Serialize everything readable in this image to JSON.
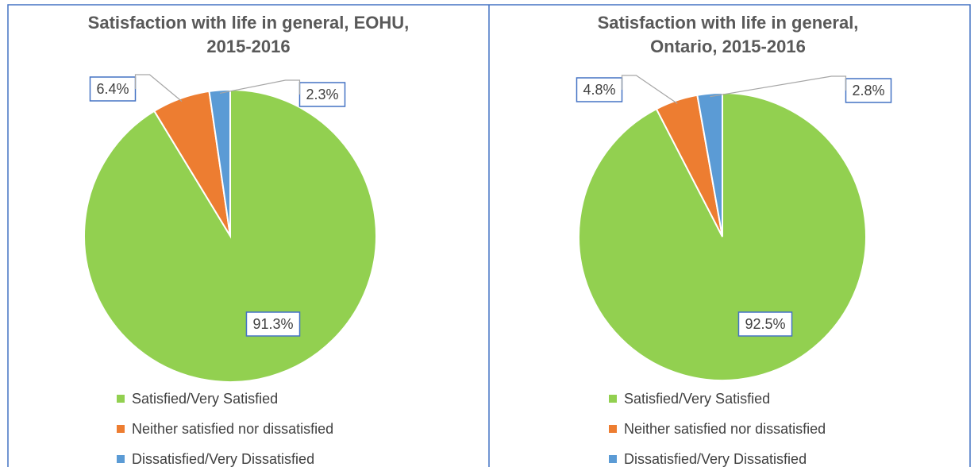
{
  "chart_data": [
    {
      "type": "pie",
      "title": [
        "Satisfaction with life in general, EOHU,",
        "2015-2016"
      ],
      "categories": [
        "Satisfied/Very Satisfied",
        "Neither satisfied nor dissatisfied",
        "Dissatisfied/Very Dissatisfied"
      ],
      "values": [
        91.3,
        6.4,
        2.3
      ],
      "value_labels": [
        "91.3%",
        "6.4%",
        "2.3%"
      ],
      "colors": [
        "#92d050",
        "#ed7d31",
        "#5b9bd5"
      ]
    },
    {
      "type": "pie",
      "title": [
        "Satisfaction with life in general,",
        "Ontario, 2015-2016"
      ],
      "categories": [
        "Satisfied/Very Satisfied",
        "Neither satisfied nor dissatisfied",
        "Dissatisfied/Very Dissatisfied"
      ],
      "values": [
        92.5,
        4.8,
        2.8
      ],
      "value_labels": [
        "92.5%",
        "4.8%",
        "2.8%"
      ],
      "colors": [
        "#92d050",
        "#ed7d31",
        "#5b9bd5"
      ]
    }
  ]
}
